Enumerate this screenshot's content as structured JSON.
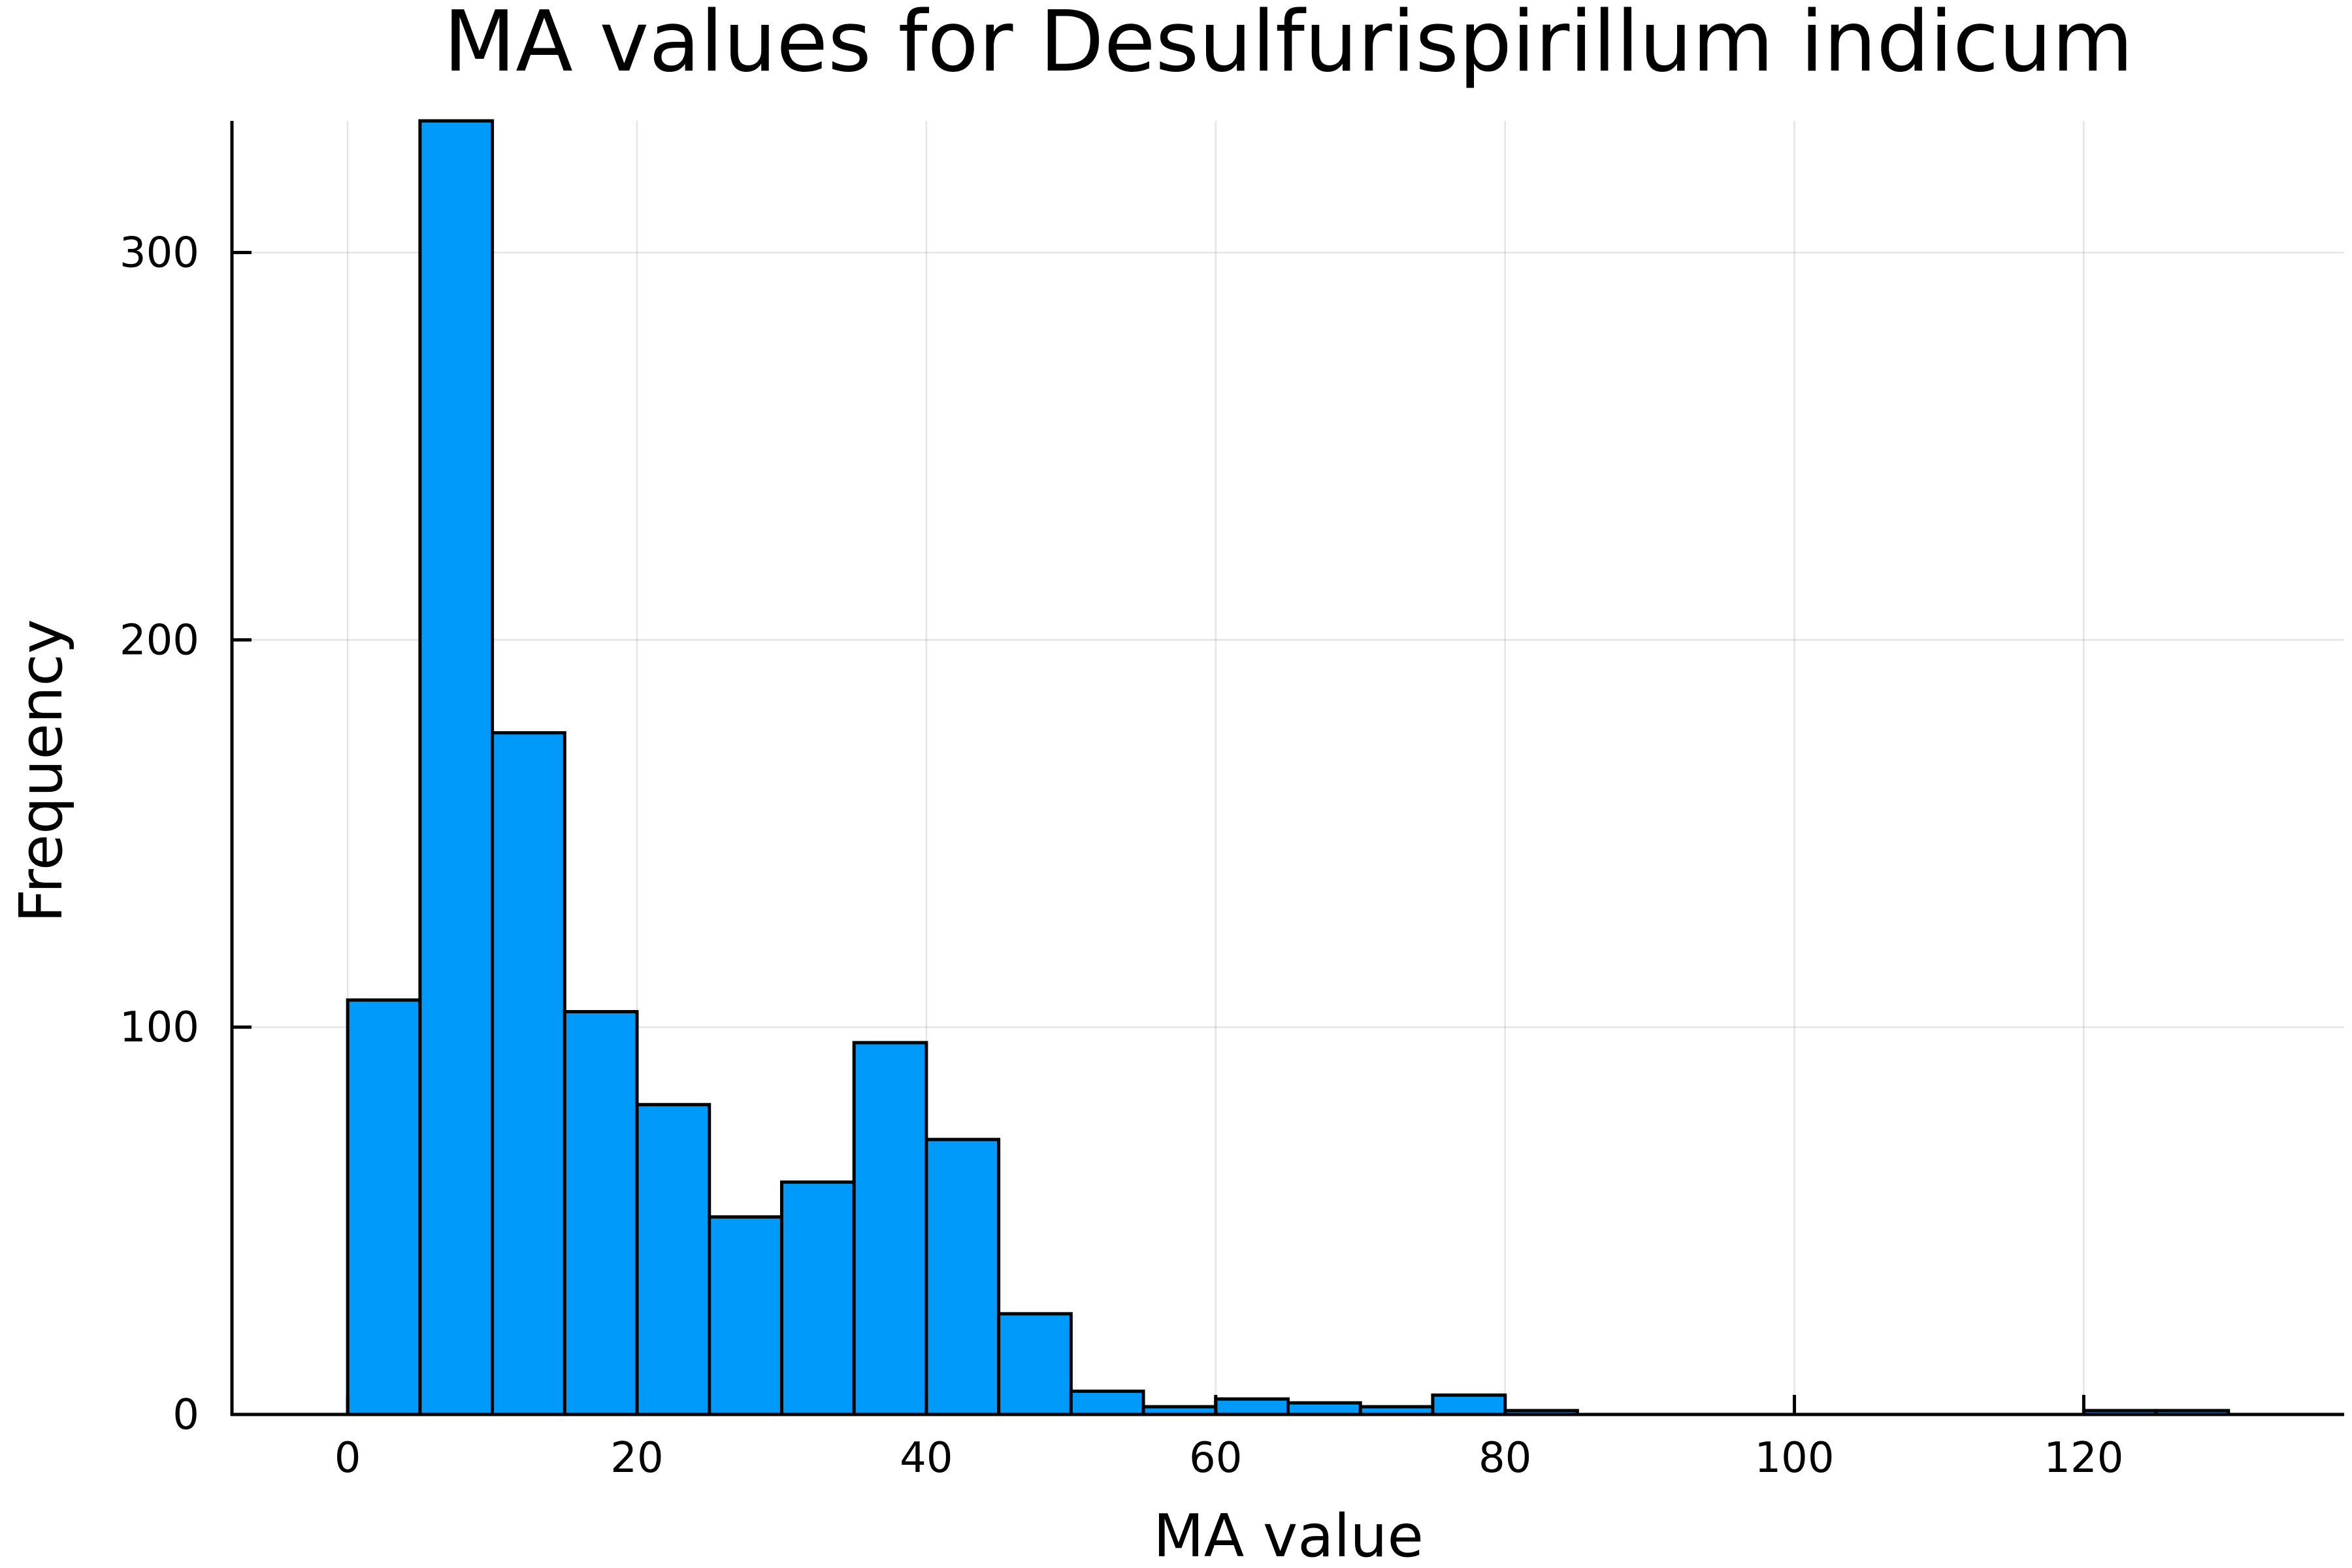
{
  "chart_data": {
    "type": "bar",
    "title": "MA values for Desulfurispirillum indicum",
    "xlabel": "MA value",
    "ylabel": "Frequency",
    "bin_width": 5,
    "bin_starts": [
      0,
      5,
      10,
      15,
      20,
      25,
      30,
      35,
      40,
      45,
      50,
      55,
      60,
      65,
      70,
      75,
      80,
      85,
      90,
      95,
      100,
      105,
      110,
      115,
      120,
      125
    ],
    "values": [
      107,
      334,
      176,
      104,
      80,
      51,
      60,
      96,
      71,
      26,
      6,
      2,
      4,
      3,
      2,
      5,
      1,
      0,
      0,
      0,
      0,
      0,
      0,
      0,
      1,
      1
    ],
    "xlim": [
      -8,
      138
    ],
    "ylim": [
      0,
      334
    ],
    "xticks": [
      0,
      20,
      40,
      60,
      80,
      100,
      120
    ],
    "xtick_labels": [
      "0",
      "20",
      "40",
      "60",
      "80",
      "100",
      "120"
    ],
    "yticks": [
      0,
      100,
      200,
      300
    ],
    "ytick_labels": [
      "0",
      "100",
      "200",
      "300"
    ],
    "grid": true,
    "legend": "none",
    "bar_color": "#009AFA",
    "edge_color": "#000000"
  }
}
